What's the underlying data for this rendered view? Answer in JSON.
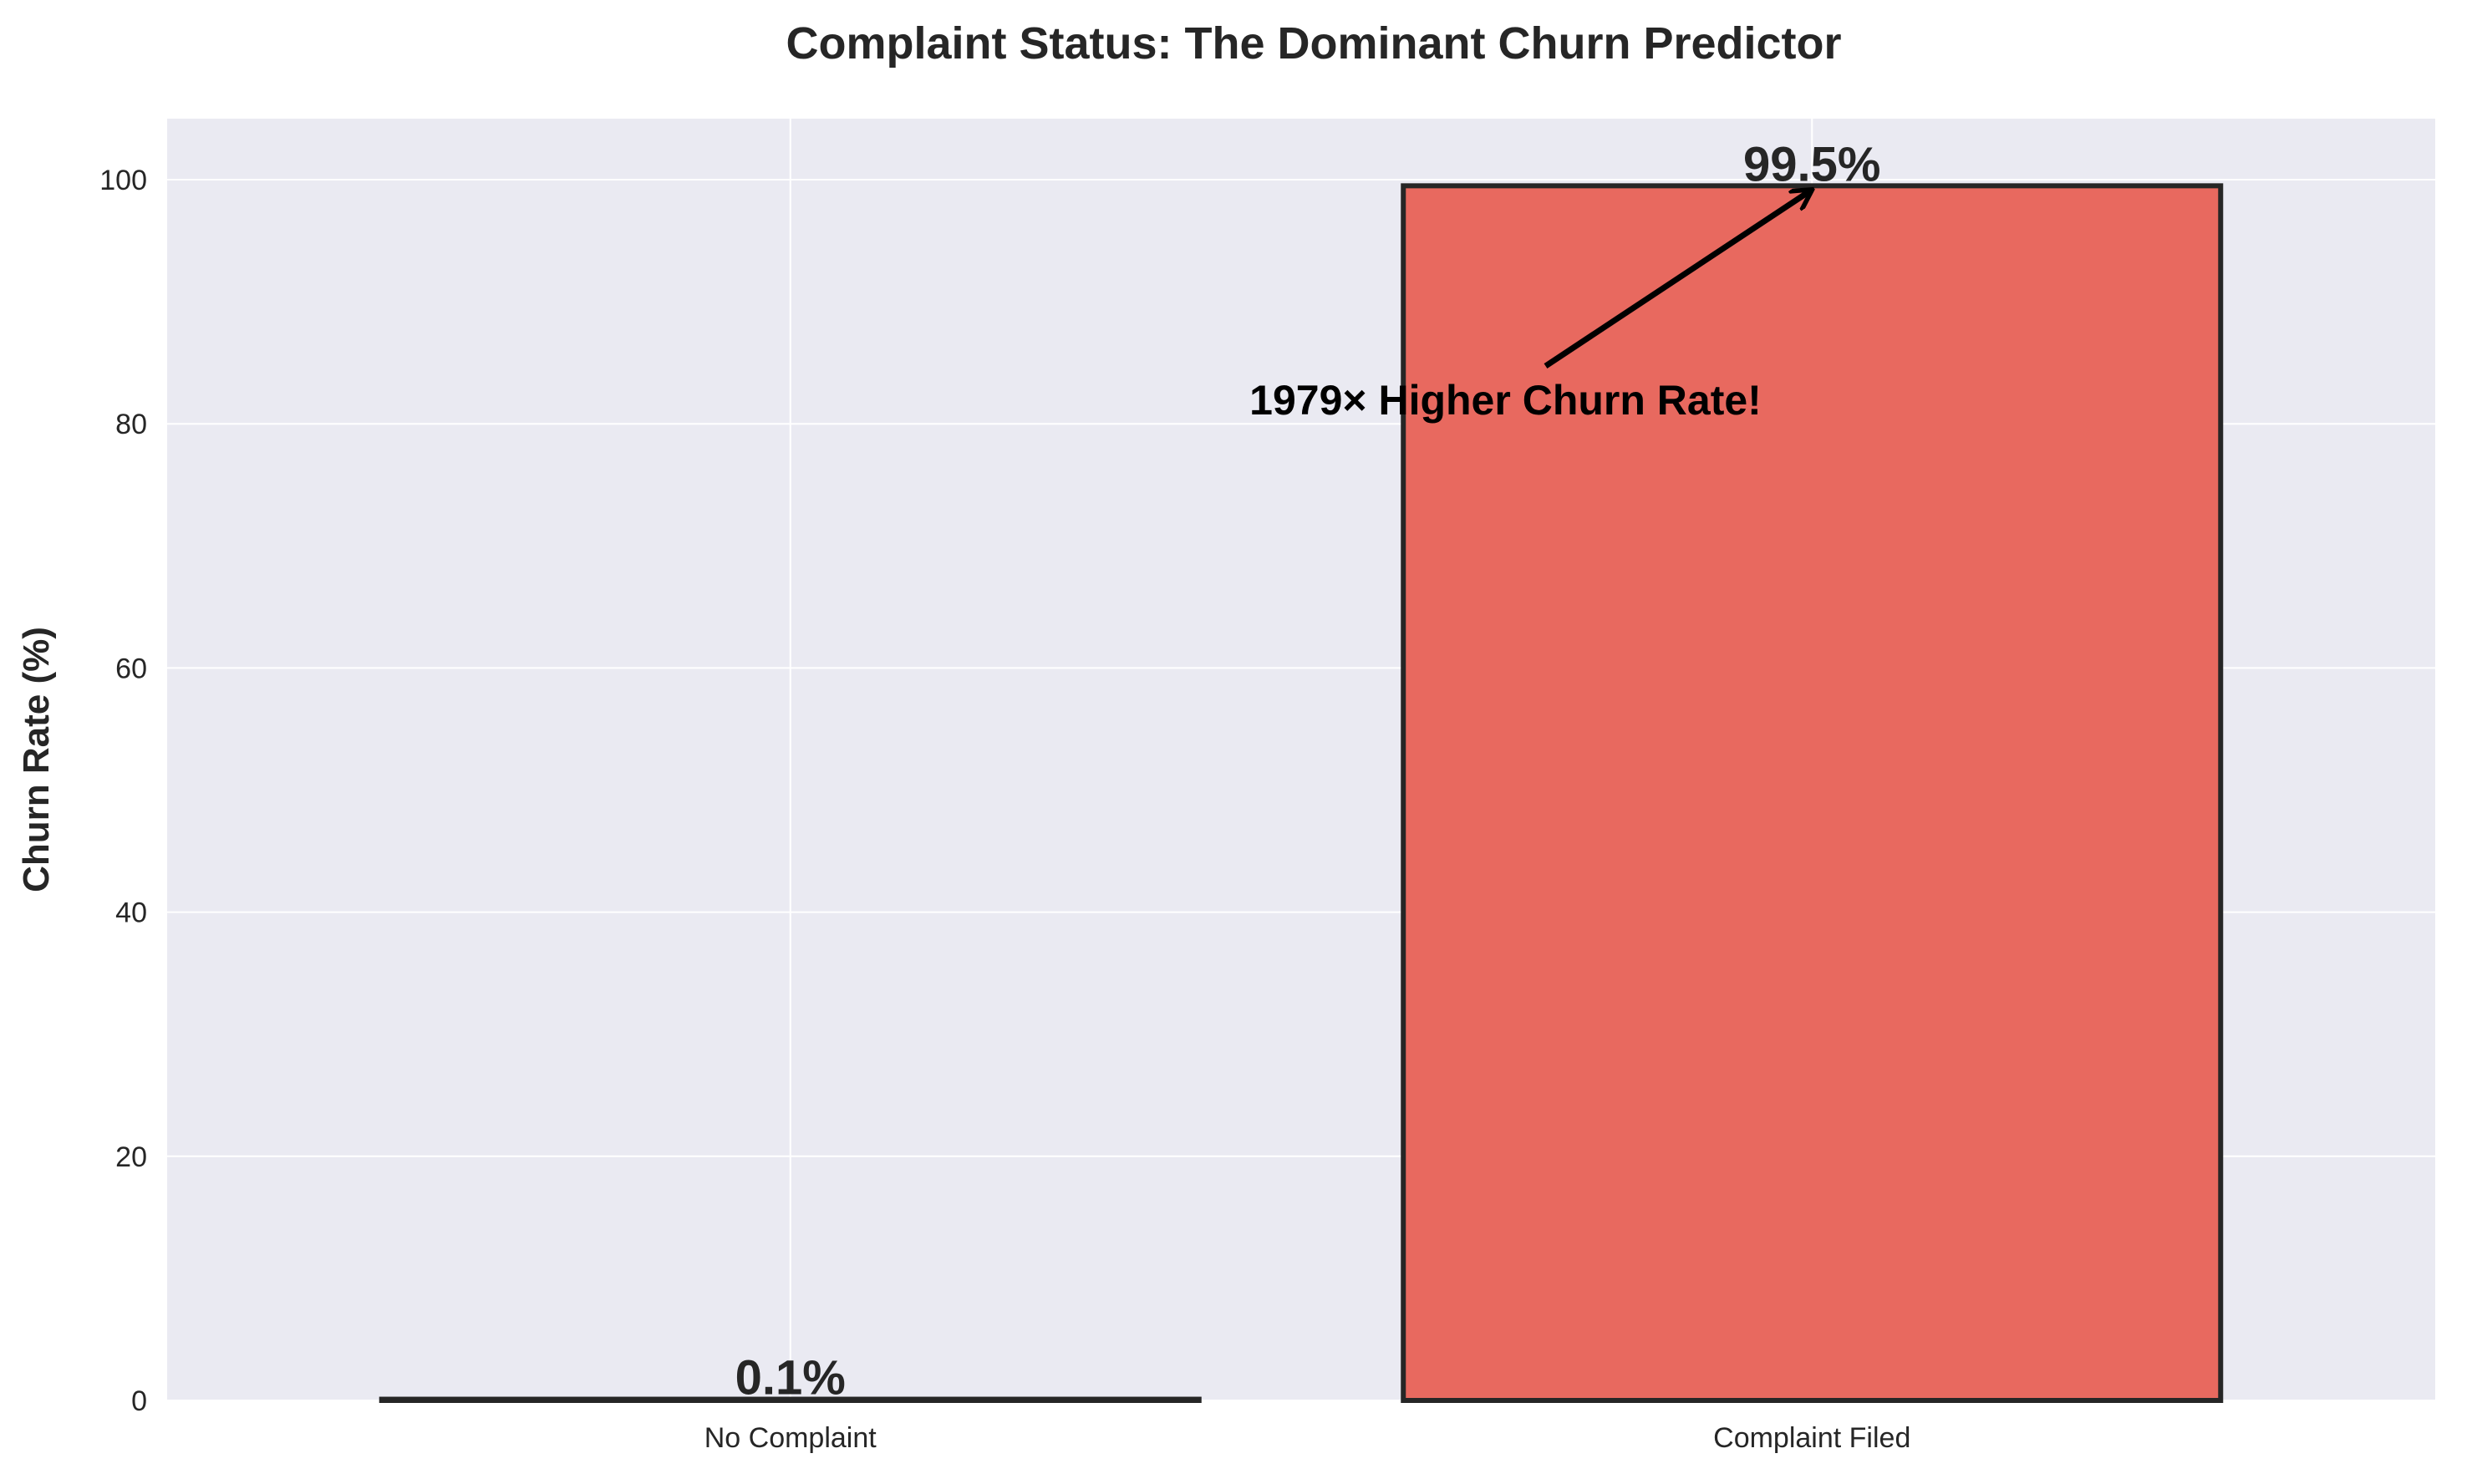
{
  "chart_data": {
    "type": "bar",
    "title": "Complaint Status: The Dominant Churn Predictor",
    "xlabel": "",
    "ylabel": "Churn Rate (%)",
    "categories": [
      "No Complaint",
      "Complaint Filed"
    ],
    "values": [
      0.1,
      99.5
    ],
    "value_labels": [
      "0.1%",
      "99.5%"
    ],
    "ylim": [
      0,
      105
    ],
    "yticks": [
      0,
      20,
      40,
      60,
      80,
      100
    ],
    "grid": true,
    "annotation": {
      "text": "1979× Higher Churn Rate!",
      "points_to_category": "Complaint Filed",
      "points_to_value": 99.5,
      "text_at_category_offset": -0.3,
      "text_at_value": 82
    },
    "colors": {
      "background": "#eaeaf2",
      "grid": "#ffffff",
      "bar": "#e8695f",
      "bar_edge": "#262626",
      "text": "#262626",
      "annotation": "#000000"
    }
  }
}
